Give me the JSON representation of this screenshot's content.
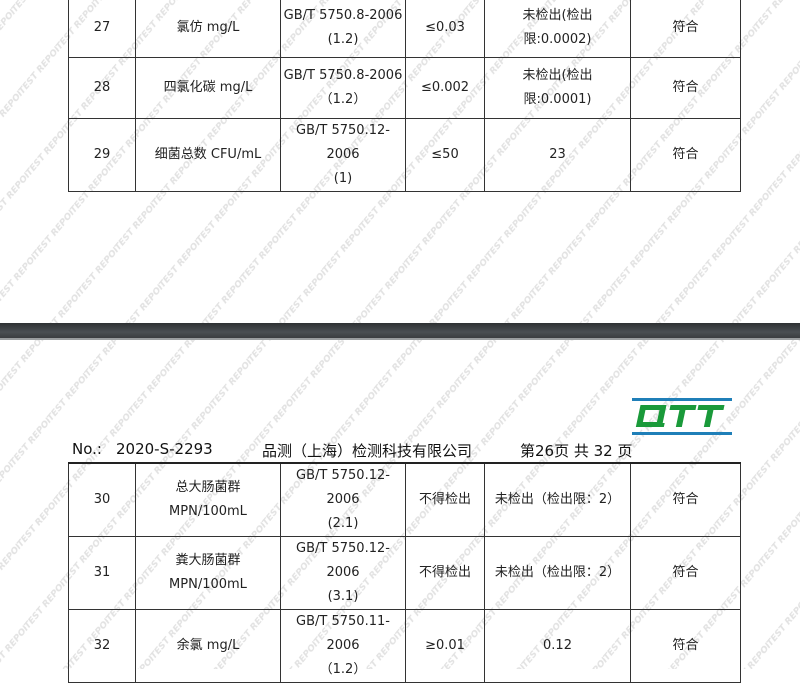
{
  "watermark": "TEST REPORT",
  "header": {
    "no_label": "No.:",
    "report_no": "2020-S-2293",
    "company": "品测（上海）检测科技有限公司",
    "page_info": "第26页 共 32 页"
  },
  "logo": {
    "text": "QTT",
    "color": "#1a9a3a",
    "accent": "#1f7fb8"
  },
  "table_top": {
    "rows": [
      {
        "no": "27",
        "item": "氯仿 mg/L",
        "method": [
          "GB/T 5750.8-2006",
          "(1.2)"
        ],
        "limit": "≤0.03",
        "result": [
          "未检出(检出",
          "限:0.0002)"
        ],
        "verdict": "符合"
      },
      {
        "no": "28",
        "item": "四氯化碳 mg/L",
        "method": [
          "GB/T 5750.8-2006",
          "（1.2）"
        ],
        "limit": "≤0.002",
        "result": [
          "未检出(检出",
          "限:0.0001)"
        ],
        "verdict": "符合"
      },
      {
        "no": "29",
        "item": "细菌总数 CFU/mL",
        "method": [
          "GB/T 5750.12-2006",
          "(1)"
        ],
        "limit": "≤50",
        "result": [
          "23"
        ],
        "verdict": "符合"
      }
    ]
  },
  "table_bottom": {
    "rows": [
      {
        "no": "30",
        "item": [
          "总大肠菌群",
          "MPN/100mL"
        ],
        "method": [
          "GB/T 5750.12-2006",
          "(2.1)"
        ],
        "limit": "不得检出",
        "result": [
          "未检出（检出限：2）"
        ],
        "verdict": "符合"
      },
      {
        "no": "31",
        "item": [
          "粪大肠菌群",
          "MPN/100mL"
        ],
        "method": [
          "GB/T 5750.12-2006",
          "(3.1)"
        ],
        "limit": "不得检出",
        "result": [
          "未检出（检出限：2）"
        ],
        "verdict": "符合"
      },
      {
        "no": "32",
        "item": [
          "余氯 mg/L"
        ],
        "method": [
          "GB/T 5750.11-2006",
          "（1.2）"
        ],
        "limit": "≥0.01",
        "result": [
          "0.12"
        ],
        "verdict": "符合"
      }
    ]
  }
}
